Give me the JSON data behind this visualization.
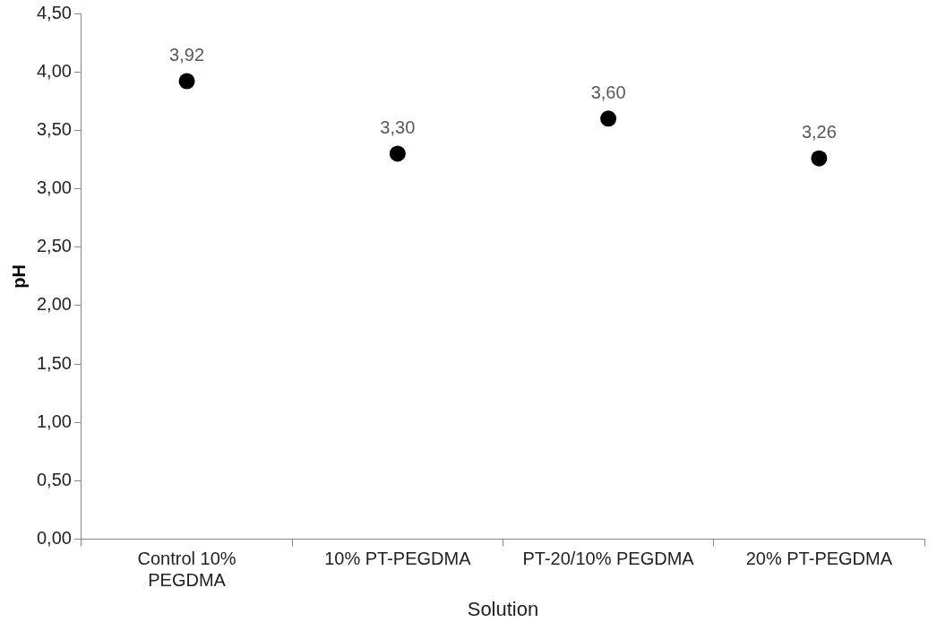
{
  "chart_data": {
    "type": "scatter",
    "xlabel": "Solution",
    "ylabel": "pH",
    "categories": [
      "Control 10% PEGDMA",
      "10% PT-PEGDMA",
      "PT-20/10% PEGDMA",
      "20% PT-PEGDMA"
    ],
    "series": [
      {
        "color": "#000000",
        "values": [
          3.92,
          3.3,
          3.6,
          3.26
        ],
        "value_labels": [
          "3,92",
          "3,30",
          "3,60",
          "3,26"
        ]
      }
    ],
    "ylim": [
      0,
      4.5
    ],
    "yticks": [
      {
        "value": 0,
        "label": "0,00"
      },
      {
        "value": 0.5,
        "label": "0,50"
      },
      {
        "value": 1,
        "label": "1,00"
      },
      {
        "value": 1.5,
        "label": "1,50"
      },
      {
        "value": 2,
        "label": "2,00"
      },
      {
        "value": 2.5,
        "label": "2,50"
      },
      {
        "value": 3,
        "label": "3,00"
      },
      {
        "value": 3.5,
        "label": "3,50"
      },
      {
        "value": 4,
        "label": "4,00"
      },
      {
        "value": 4.5,
        "label": "4,50"
      }
    ],
    "marker": "circle",
    "grid": false,
    "legend": false
  }
}
